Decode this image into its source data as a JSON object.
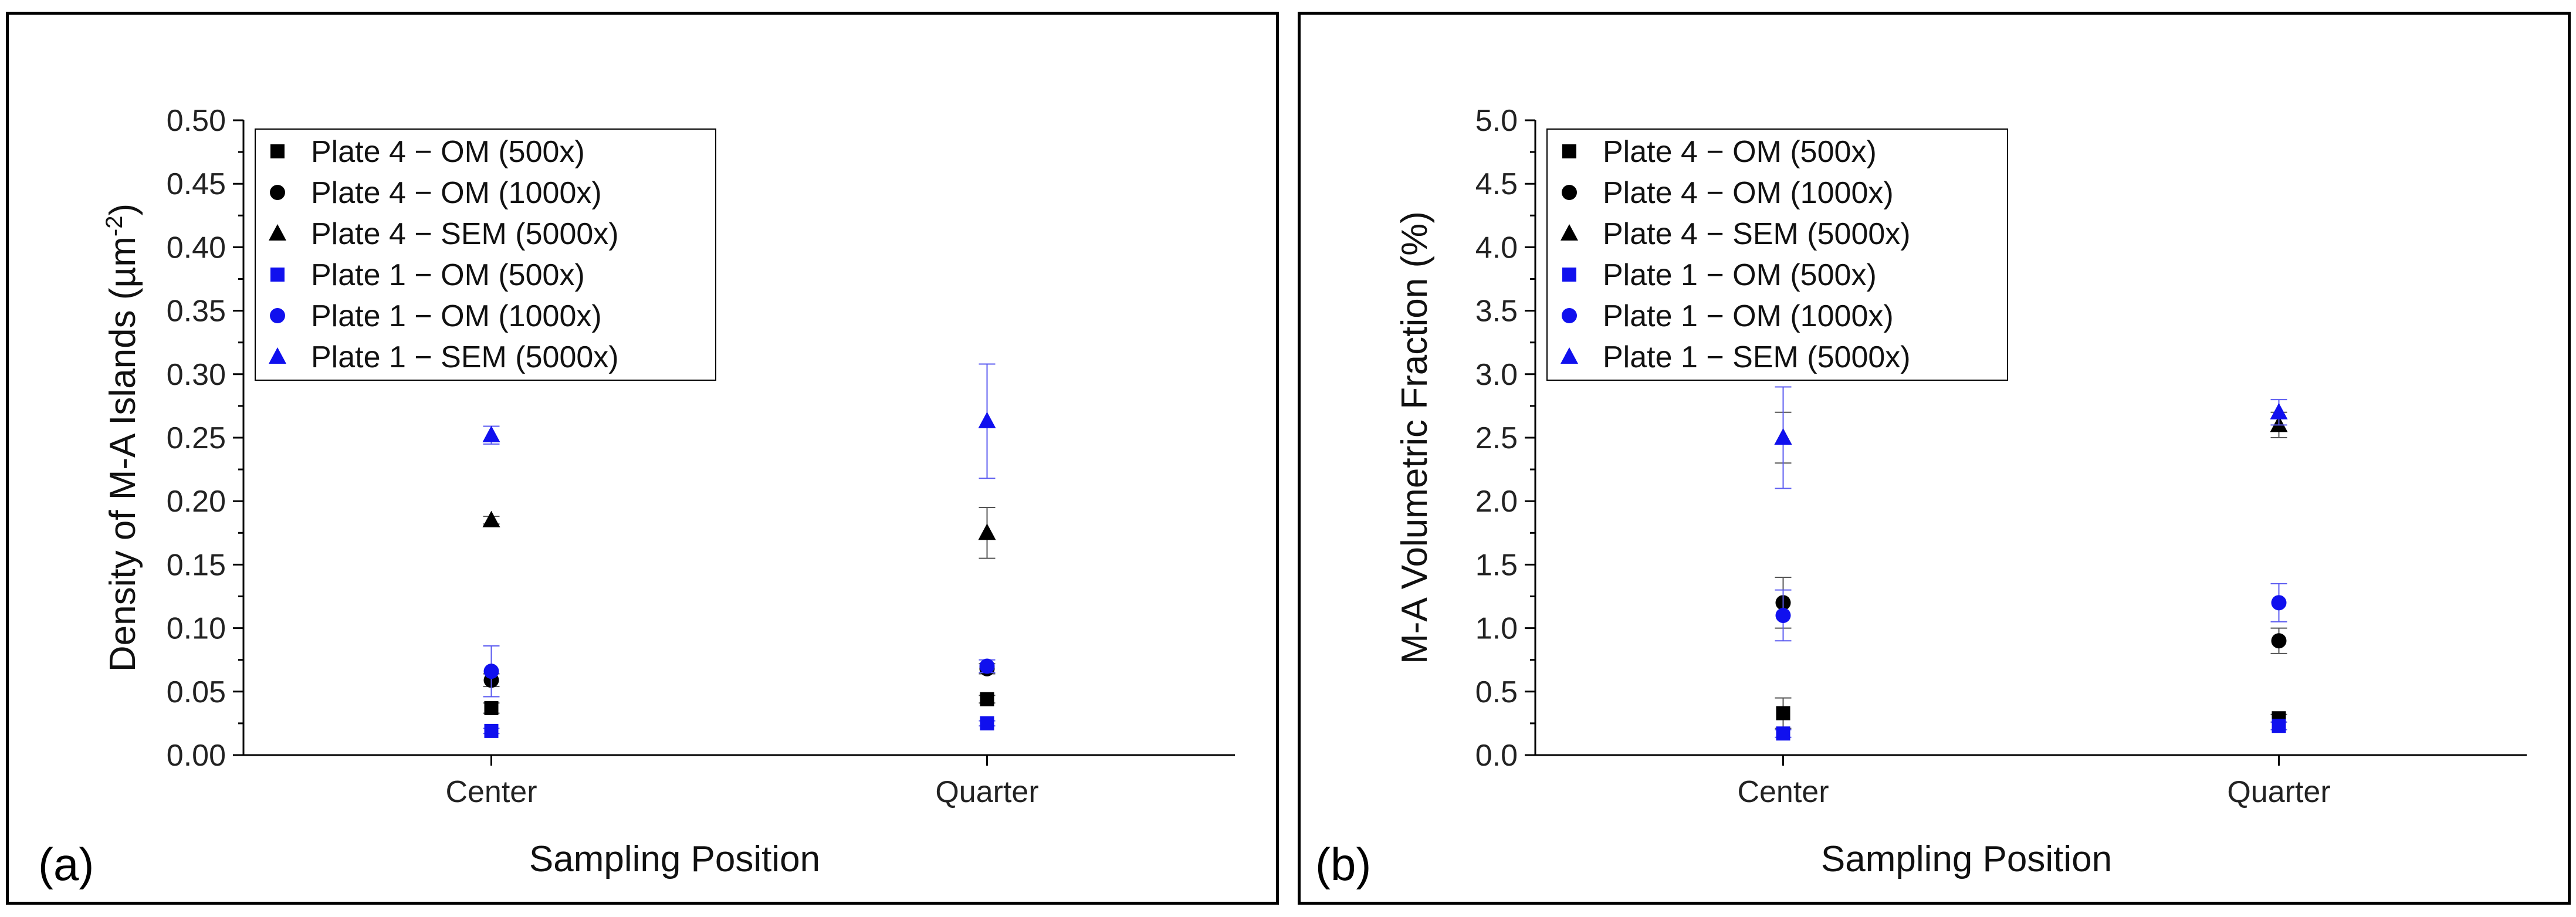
{
  "chart_data": [
    {
      "type": "scatter",
      "panel_label": "(a)",
      "xlabel": "Sampling Position",
      "ylabel": "Density of M-A Islands (µm",
      "ylabel_sup": "-2",
      "ylabel_end": ")",
      "categories": [
        "Center",
        "Quarter"
      ],
      "ylim": [
        0,
        0.5
      ],
      "yticks": [
        0,
        0.05,
        0.1,
        0.15,
        0.2,
        0.25,
        0.3,
        0.35,
        0.4,
        0.45,
        0.5
      ],
      "ytick_labels": [
        "0.00",
        "0.05",
        "0.10",
        "0.15",
        "0.20",
        "0.25",
        "0.30",
        "0.35",
        "0.40",
        "0.45",
        "0.50"
      ],
      "legend_position": "top-left",
      "series": [
        {
          "name": "Plate 4 − OM (500x)",
          "marker": "square",
          "color": "#000000",
          "values": [
            0.037,
            0.044
          ],
          "errors": [
            0.004,
            0.003
          ]
        },
        {
          "name": "Plate 4 − OM (1000x)",
          "marker": "circle",
          "color": "#000000",
          "values": [
            0.059,
            0.068
          ],
          "errors": [
            0.005,
            0.004
          ]
        },
        {
          "name": "Plate 4 − SEM (5000x)",
          "marker": "triangle",
          "color": "#000000",
          "values": [
            0.185,
            0.175
          ],
          "errors": [
            0.003,
            0.02
          ]
        },
        {
          "name": "Plate 1 − OM (500x)",
          "marker": "square",
          "color": "#1010ee",
          "values": [
            0.019,
            0.025
          ],
          "errors": [
            0.002,
            0.002
          ]
        },
        {
          "name": "Plate 1 − OM (1000x)",
          "marker": "circle",
          "color": "#1010ee",
          "values": [
            0.066,
            0.07
          ],
          "errors": [
            0.02,
            0.005
          ]
        },
        {
          "name": "Plate 1 − SEM (5000x)",
          "marker": "triangle",
          "color": "#1010ee",
          "values": [
            0.252,
            0.263
          ],
          "errors": [
            0.007,
            0.045
          ]
        }
      ]
    },
    {
      "type": "scatter",
      "panel_label": "(b)",
      "xlabel": "Sampling Position",
      "ylabel": "M-A Volumetric Fraction (%)",
      "ylabel_sup": "",
      "ylabel_end": "",
      "categories": [
        "Center",
        "Quarter"
      ],
      "ylim": [
        0,
        5
      ],
      "yticks": [
        0,
        0.5,
        1,
        1.5,
        2,
        2.5,
        3,
        3.5,
        4,
        4.5,
        5
      ],
      "ytick_labels": [
        "0.0",
        "0.5",
        "1.0",
        "1.5",
        "2.0",
        "2.5",
        "3.0",
        "3.5",
        "4.0",
        "4.5",
        "5.0"
      ],
      "legend_position": "top-left",
      "series": [
        {
          "name": "Plate 4 − OM (500x)",
          "marker": "square",
          "color": "#000000",
          "values": [
            0.33,
            0.29
          ],
          "errors": [
            0.12,
            0.03
          ]
        },
        {
          "name": "Plate 4 − OM (1000x)",
          "marker": "circle",
          "color": "#000000",
          "values": [
            1.2,
            0.9
          ],
          "errors": [
            0.2,
            0.1
          ]
        },
        {
          "name": "Plate 4 − SEM (5000x)",
          "marker": "triangle",
          "color": "#000000",
          "values": [
            2.5,
            2.6
          ],
          "errors": [
            0.2,
            0.1
          ]
        },
        {
          "name": "Plate 1 − OM (500x)",
          "marker": "square",
          "color": "#1010ee",
          "values": [
            0.17,
            0.23
          ],
          "errors": [
            0.03,
            0.03
          ]
        },
        {
          "name": "Plate 1 − OM (1000x)",
          "marker": "circle",
          "color": "#1010ee",
          "values": [
            1.1,
            1.2
          ],
          "errors": [
            0.2,
            0.15
          ]
        },
        {
          "name": "Plate 1 − SEM (5000x)",
          "marker": "triangle",
          "color": "#1010ee",
          "values": [
            2.5,
            2.7
          ],
          "errors": [
            0.4,
            0.1
          ]
        }
      ]
    }
  ]
}
